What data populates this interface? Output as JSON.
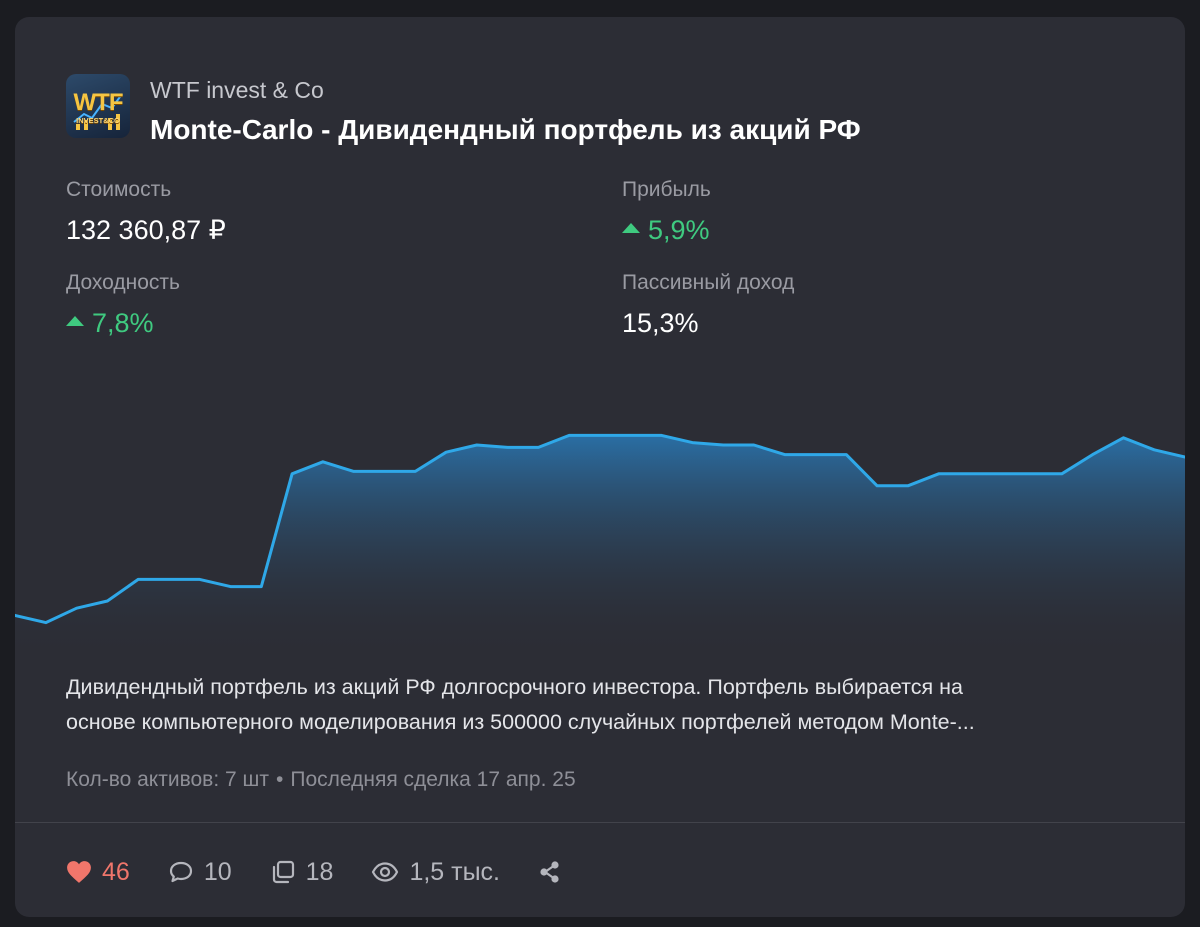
{
  "header": {
    "logo_line1": "WTF",
    "logo_line2": "INVEST&CO",
    "author": "WTF invest & Co",
    "title": "Monte-Carlo - Дивидендный портфель из акций РФ"
  },
  "stats": {
    "value_label": "Стоимость",
    "value": "132 360,87 ₽",
    "profit_label": "Прибыль",
    "profit": "5,9%",
    "yield_label": "Доходность",
    "yield": "7,8%",
    "passive_label": "Пассивный доход",
    "passive": "15,3%"
  },
  "colors": {
    "positive": "#3fca80",
    "line": "#2fa8e8",
    "likes": "#f0766b"
  },
  "chart_data": {
    "type": "area",
    "values": [
      9,
      6,
      12,
      15,
      24,
      24,
      24,
      21,
      21,
      68,
      73,
      69,
      69,
      69,
      77,
      80,
      79,
      79,
      84,
      84,
      84,
      84,
      81,
      80,
      80,
      76,
      76,
      76,
      63,
      63,
      68,
      68,
      68,
      68,
      68,
      76,
      83,
      78,
      75
    ],
    "ylim": [
      0,
      100
    ],
    "grid": false,
    "legend": "none"
  },
  "description": {
    "line1": "Дивидендный портфель из акций РФ долгосрочного инвестора. Портфель выбирается на",
    "line2": "основе компьютерного моделирования из 500000 случайных портфелей методом Monte-..."
  },
  "meta": {
    "assets": "Кол-во активов: 7 шт",
    "separator": "•",
    "last_trade": "Последняя сделка 17 апр. 25"
  },
  "footer": {
    "likes": "46",
    "comments": "10",
    "reposts": "18",
    "views": "1,5 тыс.",
    "icons": [
      "heart-icon",
      "comment-icon",
      "repost-icon",
      "eye-icon",
      "share-icon"
    ]
  }
}
